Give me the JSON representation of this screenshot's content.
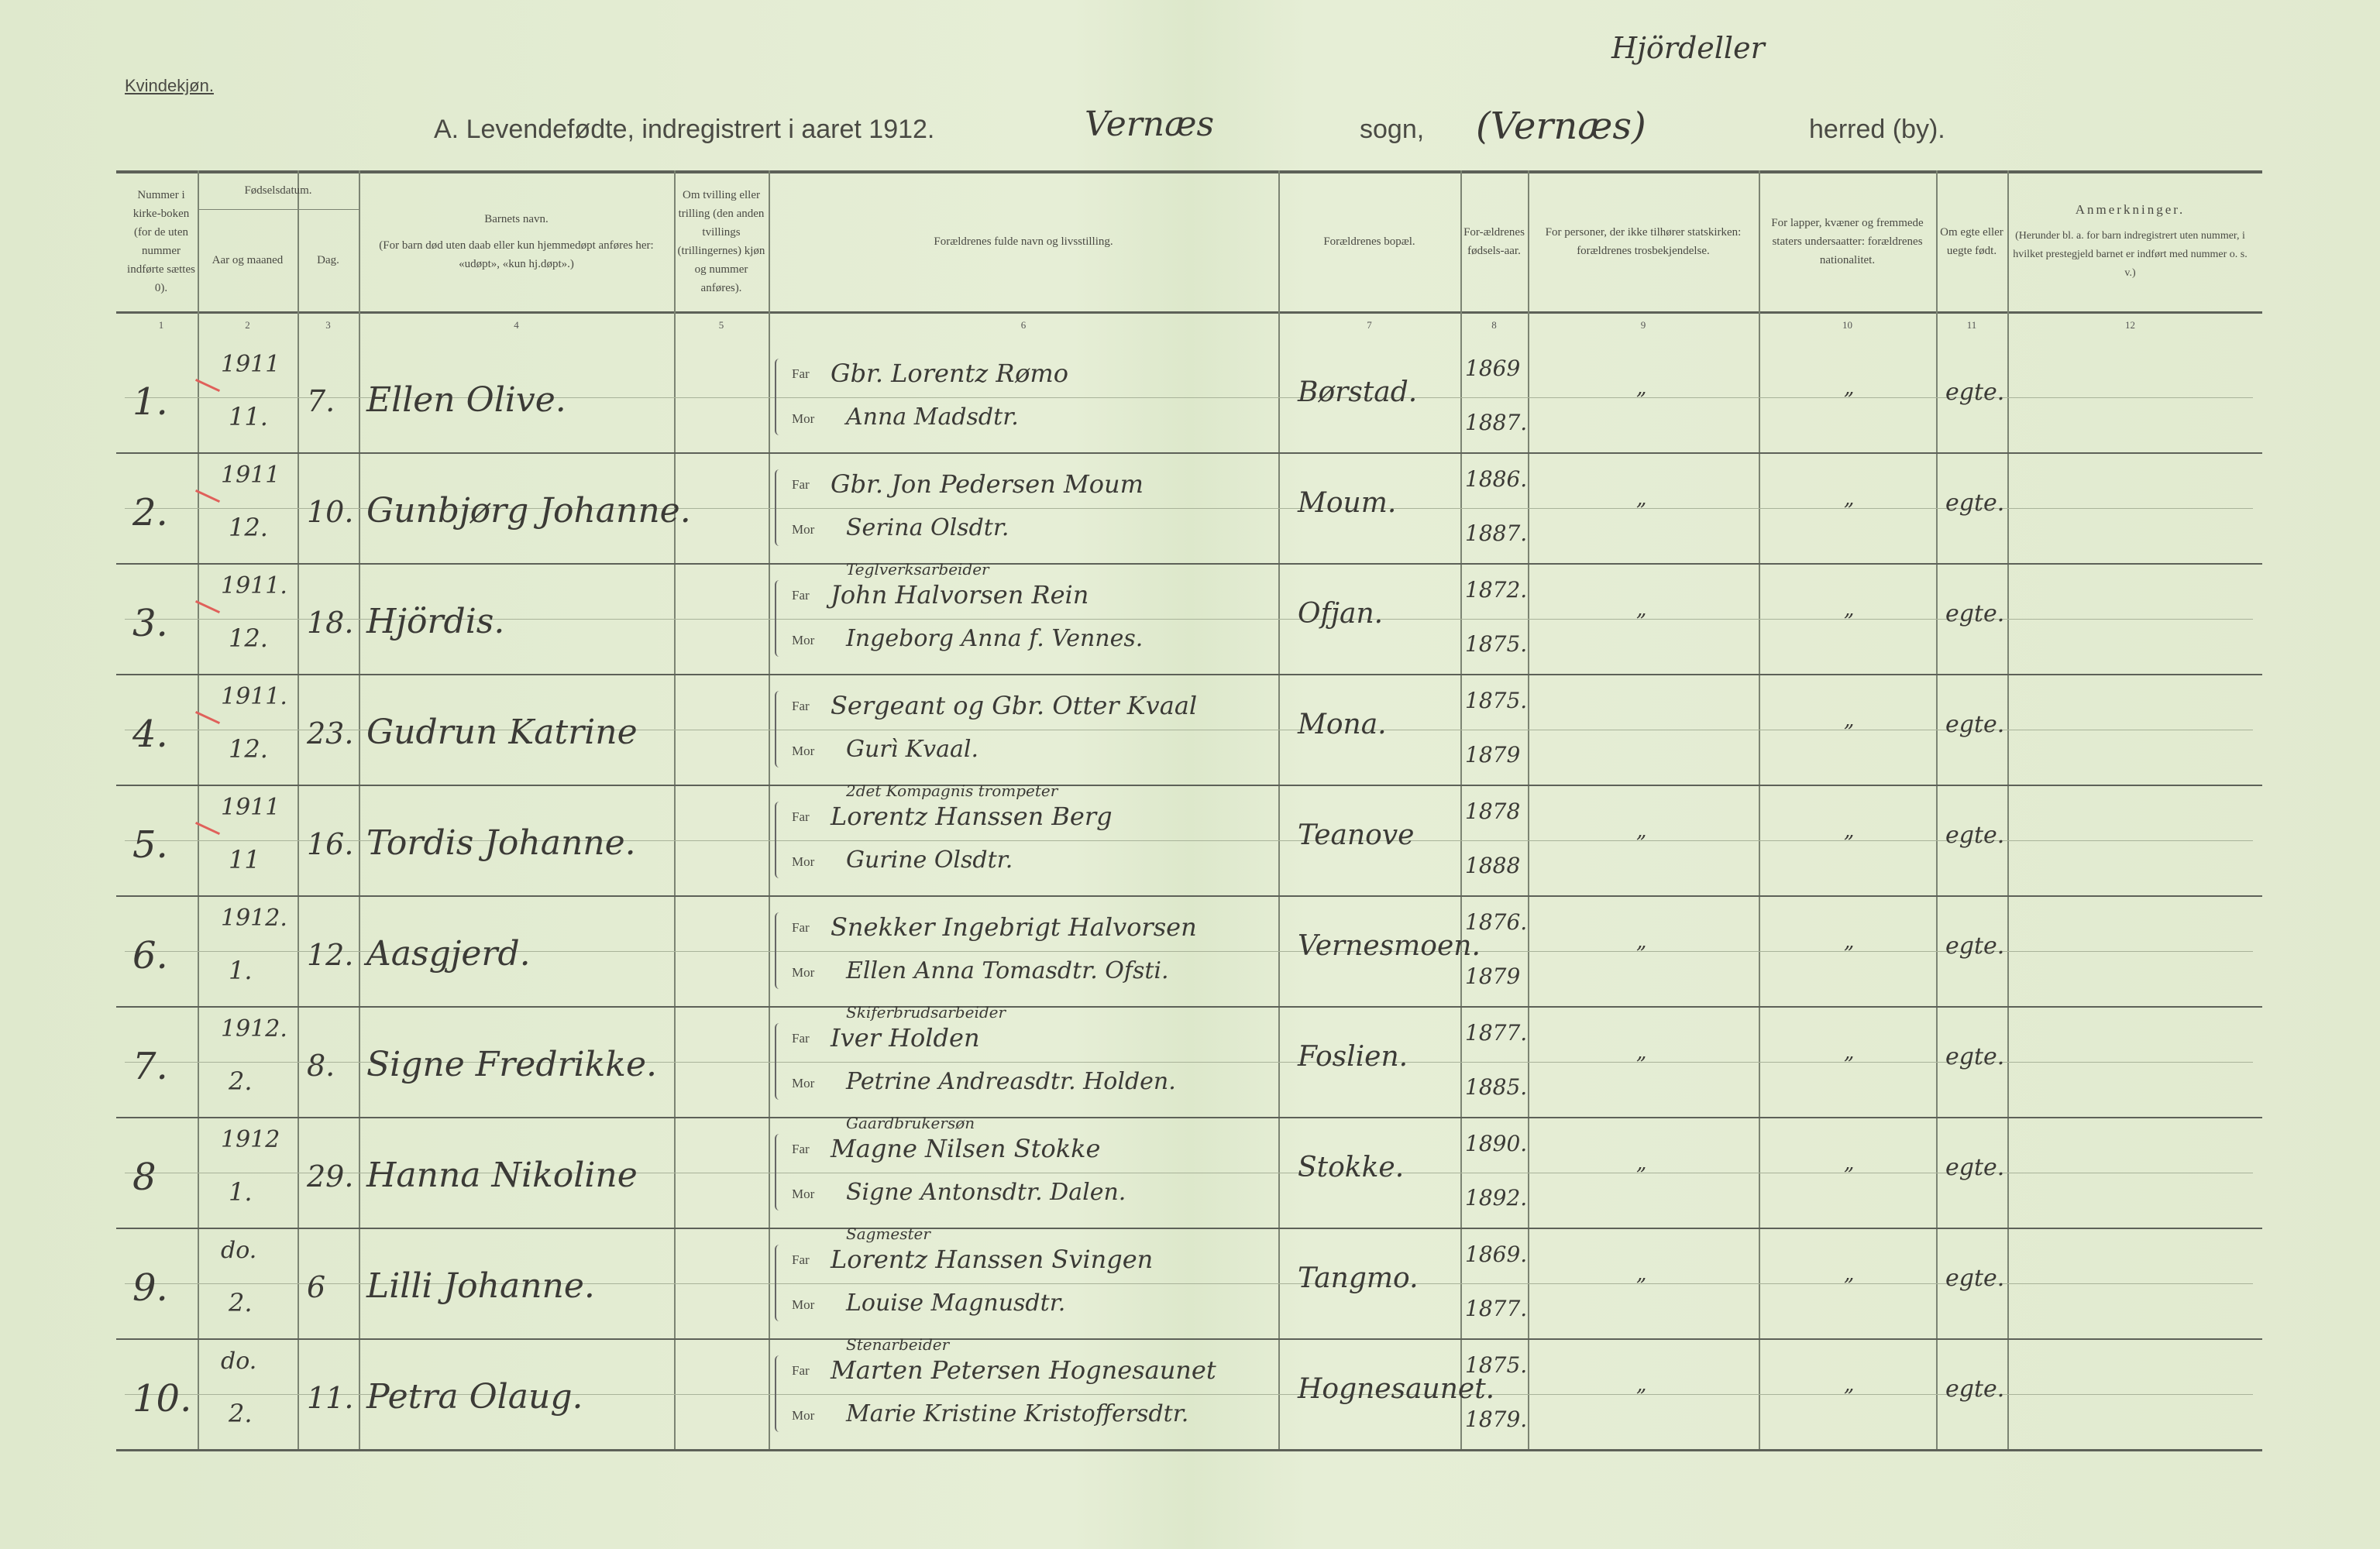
{
  "document": {
    "section_label": "Kvindekjøn.",
    "title": "A.  Levendefødte, indregistrert i aaret 1912.",
    "parish_handwritten": "Vernæs",
    "sogn_label": "sogn,",
    "herred_handwritten": "(Vernæs)",
    "herred_above_handwritten": "Hjördeller",
    "herred_label": "herred (by)."
  },
  "columns": [
    {
      "num": "1",
      "header": "Nummer i kirke-boken (for de uten nummer indførte sættes 0)."
    },
    {
      "num": "2",
      "header": "Aar og maaned",
      "group": "Fødselsdatum."
    },
    {
      "num": "3",
      "header": "Dag."
    },
    {
      "num": "4",
      "header": "Barnets navn.",
      "sub": "(For barn død uten daab eller kun hjemmedøpt anføres her: «udøpt», «kun hj.døpt».)"
    },
    {
      "num": "5",
      "header": "Om tvilling eller trilling (den anden tvillings (trillingernes) kjøn og nummer anføres)."
    },
    {
      "num": "6",
      "header": "Forældrenes fulde navn og livsstilling."
    },
    {
      "num": "7",
      "header": "Forældrenes bopæl."
    },
    {
      "num": "8",
      "header": "For-ældrenes fødsels-aar."
    },
    {
      "num": "9",
      "header": "For personer, der ikke tilhører statskirken: forældrenes trosbekjendelse."
    },
    {
      "num": "10",
      "header": "For lapper, kvæner og fremmede staters undersaatter: forældrenes nationalitet."
    },
    {
      "num": "11",
      "header": "Om egte eller uegte født."
    },
    {
      "num": "12",
      "header": "Anmerkninger.",
      "sub": "(Herunder bl. a. for barn indregistrert uten nummer, i hvilket prestegjeld barnet er indført med nummer o. s. v.)"
    }
  ],
  "far_label": "Far",
  "mor_label": "Mor",
  "tick_color": "#e0605a",
  "rows": [
    {
      "nr": "1.",
      "year": "1911",
      "month": "11.",
      "day": "7.",
      "child": "Ellen Olive.",
      "occ": "",
      "far": "Gbr. Lorentz Rømo",
      "mor": "Anna Madsdtr.",
      "home": "Børstad.",
      "far_year": "1869",
      "mor_year": "1887.",
      "c9": "„",
      "c10": "„",
      "legit": "egte.",
      "ticked": true
    },
    {
      "nr": "2.",
      "year": "1911",
      "month": "12.",
      "day": "10.",
      "child": "Gunbjørg Johanne.",
      "occ": "",
      "far": "Gbr. Jon Pedersen Moum",
      "mor": "Serina Olsdtr.",
      "home": "Moum.",
      "far_year": "1886.",
      "mor_year": "1887.",
      "c9": "„",
      "c10": "„",
      "legit": "egte.",
      "ticked": true
    },
    {
      "nr": "3.",
      "year": "1911.",
      "month": "12.",
      "day": "18.",
      "child": "Hjördis.",
      "occ": "Teglverksarbeider",
      "far": "John Halvorsen Rein",
      "mor": "Ingeborg Anna f. Vennes.",
      "home": "Ofjan.",
      "far_year": "1872.",
      "mor_year": "1875.",
      "c9": "„",
      "c10": "„",
      "legit": "egte.",
      "ticked": true
    },
    {
      "nr": "4.",
      "year": "1911.",
      "month": "12.",
      "day": "23.",
      "child": "Gudrun Katrine",
      "occ": "",
      "far": "Sergeant og Gbr. Otter Kvaal",
      "mor": "Gurì Kvaal.",
      "home": "Mona.",
      "far_year": "1875.",
      "mor_year": "1879",
      "c9": "",
      "c10": "„",
      "legit": "egte.",
      "ticked": true
    },
    {
      "nr": "5.",
      "year": "1911",
      "month": "11",
      "day": "16.",
      "child": "Tordis Johanne.",
      "occ": "2det Kompagnis trompeter",
      "far": "Lorentz Hanssen Berg",
      "mor": "Gurine Olsdtr.",
      "home": "Teanove",
      "far_year": "1878",
      "mor_year": "1888",
      "c9": "„",
      "c10": "„",
      "legit": "egte.",
      "ticked": true
    },
    {
      "nr": "6.",
      "year": "1912.",
      "month": "1.",
      "day": "12.",
      "child": "Aasgjerd.",
      "occ": "",
      "far": "Snekker Ingebrigt Halvorsen",
      "mor": "Ellen Anna Tomasdtr. Ofsti.",
      "home": "Vernesmoen.",
      "far_year": "1876.",
      "mor_year": "1879",
      "c9": "„",
      "c10": "„",
      "legit": "egte.",
      "ticked": false
    },
    {
      "nr": "7.",
      "year": "1912.",
      "month": "2.",
      "day": "8.",
      "child": "Signe Fredrikke.",
      "occ": "Skiferbrudsarbeider",
      "far": "Iver Holden",
      "mor": "Petrine Andreasdtr. Holden.",
      "home": "Foslien.",
      "far_year": "1877.",
      "mor_year": "1885.",
      "c9": "„",
      "c10": "„",
      "legit": "egte.",
      "ticked": false
    },
    {
      "nr": "8",
      "year": "1912",
      "month": "1.",
      "day": "29.",
      "child": "Hanna Nikoline",
      "occ": "Gaardbrukersøn",
      "far": "Magne Nilsen Stokke",
      "mor": "Signe Antonsdtr. Dalen.",
      "home": "Stokke.",
      "far_year": "1890.",
      "mor_year": "1892.",
      "c9": "„",
      "c10": "„",
      "legit": "egte.",
      "ticked": false
    },
    {
      "nr": "9.",
      "year": "do.",
      "month": "2.",
      "day": "6",
      "child": "Lilli Johanne.",
      "occ": "Sagmester",
      "far": "Lorentz Hanssen Svingen",
      "mor": "Louise Magnusdtr.",
      "home": "Tangmo.",
      "far_year": "1869.",
      "mor_year": "1877.",
      "c9": "„",
      "c10": "„",
      "legit": "egte.",
      "ticked": false
    },
    {
      "nr": "10.",
      "year": "do.",
      "month": "2.",
      "day": "11.",
      "child": "Petra Olaug.",
      "occ": "Stenarbeider",
      "far": "Marten Petersen Hognesaunet",
      "mor": "Marie Kristine Kristoffersdtr.",
      "home": "Hognesaunet.",
      "far_year": "1875.",
      "mor_year": "1879.",
      "c9": "„",
      "c10": "„",
      "legit": "egte.",
      "ticked": false
    }
  ]
}
